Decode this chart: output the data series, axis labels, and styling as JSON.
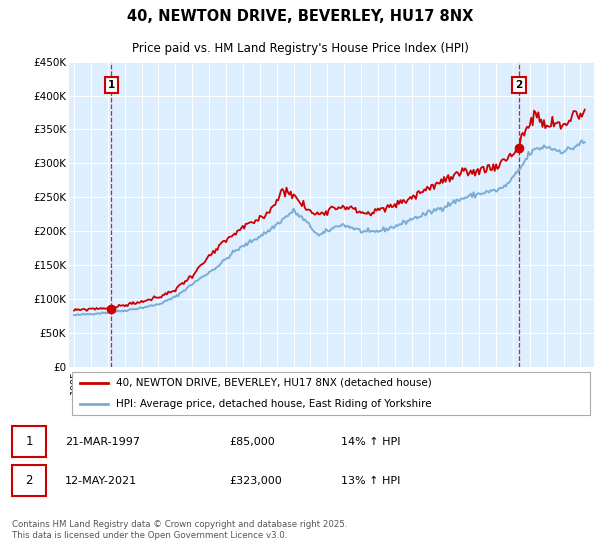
{
  "title": "40, NEWTON DRIVE, BEVERLEY, HU17 8NX",
  "subtitle": "Price paid vs. HM Land Registry's House Price Index (HPI)",
  "footnote": "Contains HM Land Registry data © Crown copyright and database right 2025.\nThis data is licensed under the Open Government Licence v3.0.",
  "legend_line1": "40, NEWTON DRIVE, BEVERLEY, HU17 8NX (detached house)",
  "legend_line2": "HPI: Average price, detached house, East Riding of Yorkshire",
  "marker1_date": "21-MAR-1997",
  "marker1_price": "£85,000",
  "marker1_hpi": "14% ↑ HPI",
  "marker2_date": "12-MAY-2021",
  "marker2_price": "£323,000",
  "marker2_hpi": "13% ↑ HPI",
  "red_color": "#cc0000",
  "blue_color": "#7aadd4",
  "bg_color": "#ddeeff",
  "grid_color": "#ffffff",
  "ylim": [
    0,
    450000
  ],
  "yticks": [
    0,
    50000,
    100000,
    150000,
    200000,
    250000,
    300000,
    350000,
    400000,
    450000
  ],
  "ytick_labels": [
    "£0",
    "£50K",
    "£100K",
    "£150K",
    "£200K",
    "£250K",
    "£300K",
    "£350K",
    "£400K",
    "£450K"
  ],
  "sale1_year": 1997.21,
  "sale1_value": 85000,
  "sale2_year": 2021.37,
  "sale2_value": 323000,
  "xlim_min": 1994.7,
  "xlim_max": 2025.8
}
